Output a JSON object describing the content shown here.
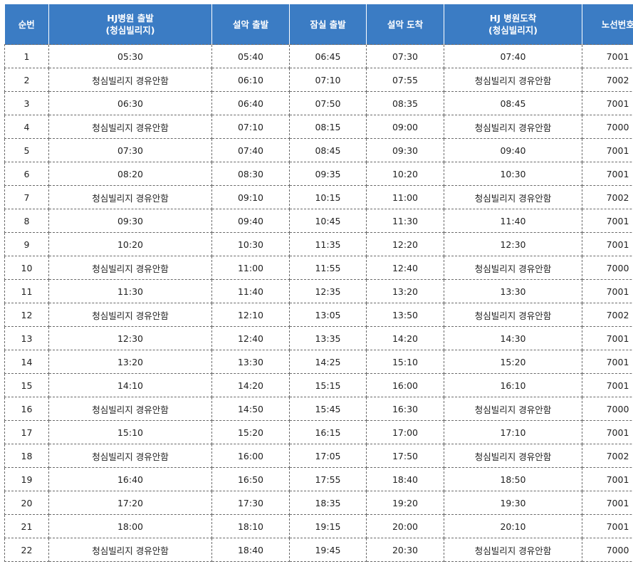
{
  "header": {
    "col1": [
      "순번"
    ],
    "col2": [
      "HJ병원 출발",
      "(청심빌리지)"
    ],
    "col3": [
      "설악 출발"
    ],
    "col4": [
      "잠실 출발"
    ],
    "col5": [
      "설악 도착"
    ],
    "col6": [
      "HJ 병원도착",
      "(청심빌리지)"
    ],
    "col7": [
      "노선번호"
    ]
  },
  "rows": [
    [
      "1",
      "05:30",
      "05:40",
      "06:45",
      "07:30",
      "07:40",
      "7001"
    ],
    [
      "2",
      "청심빌리지 경유안함",
      "06:10",
      "07:10",
      "07:55",
      "청심빌리지 경유안함",
      "7002"
    ],
    [
      "3",
      "06:30",
      "06:40",
      "07:50",
      "08:35",
      "08:45",
      "7001"
    ],
    [
      "4",
      "청심빌리지 경유안함",
      "07:10",
      "08:15",
      "09:00",
      "청심빌리지 경유안함",
      "7000"
    ],
    [
      "5",
      "07:30",
      "07:40",
      "08:45",
      "09:30",
      "09:40",
      "7001"
    ],
    [
      "6",
      "08:20",
      "08:30",
      "09:35",
      "10:20",
      "10:30",
      "7001"
    ],
    [
      "7",
      "청심빌리지 경유안함",
      "09:10",
      "10:15",
      "11:00",
      "청심빌리지 경유안함",
      "7002"
    ],
    [
      "8",
      "09:30",
      "09:40",
      "10:45",
      "11:30",
      "11:40",
      "7001"
    ],
    [
      "9",
      "10:20",
      "10:30",
      "11:35",
      "12:20",
      "12:30",
      "7001"
    ],
    [
      "10",
      "청심빌리지 경유안함",
      "11:00",
      "11:55",
      "12:40",
      "청심빌리지 경유안함",
      "7000"
    ],
    [
      "11",
      "11:30",
      "11:40",
      "12:35",
      "13:20",
      "13:30",
      "7001"
    ],
    [
      "12",
      "청심빌리지 경유안함",
      "12:10",
      "13:05",
      "13:50",
      "청심빌리지 경유안함",
      "7002"
    ],
    [
      "13",
      "12:30",
      "12:40",
      "13:35",
      "14:20",
      "14:30",
      "7001"
    ],
    [
      "14",
      "13:20",
      "13:30",
      "14:25",
      "15:10",
      "15:20",
      "7001"
    ],
    [
      "15",
      "14:10",
      "14:20",
      "15:15",
      "16:00",
      "16:10",
      "7001"
    ],
    [
      "16",
      "청심빌리지 경유안함",
      "14:50",
      "15:45",
      "16:30",
      "청심빌리지 경유안함",
      "7000"
    ],
    [
      "17",
      "15:10",
      "15:20",
      "16:15",
      "17:00",
      "17:10",
      "7001"
    ],
    [
      "18",
      "청심빌리지 경유안함",
      "16:00",
      "17:05",
      "17:50",
      "청심빌리지 경유안함",
      "7002"
    ],
    [
      "19",
      "16:40",
      "16:50",
      "17:55",
      "18:40",
      "18:50",
      "7001"
    ],
    [
      "20",
      "17:20",
      "17:30",
      "18:35",
      "19:20",
      "19:30",
      "7001"
    ],
    [
      "21",
      "18:00",
      "18:10",
      "19:15",
      "20:00",
      "20:10",
      "7001"
    ],
    [
      "22",
      "청심빌리지 경유안함",
      "18:40",
      "19:45",
      "20:30",
      "청심빌리지 경유안함",
      "7000"
    ]
  ],
  "colors": {
    "header_bg": "#3b7cc4",
    "header_text": "#ffffff",
    "cell_text": "#222222",
    "border": "#6a6a6a"
  }
}
